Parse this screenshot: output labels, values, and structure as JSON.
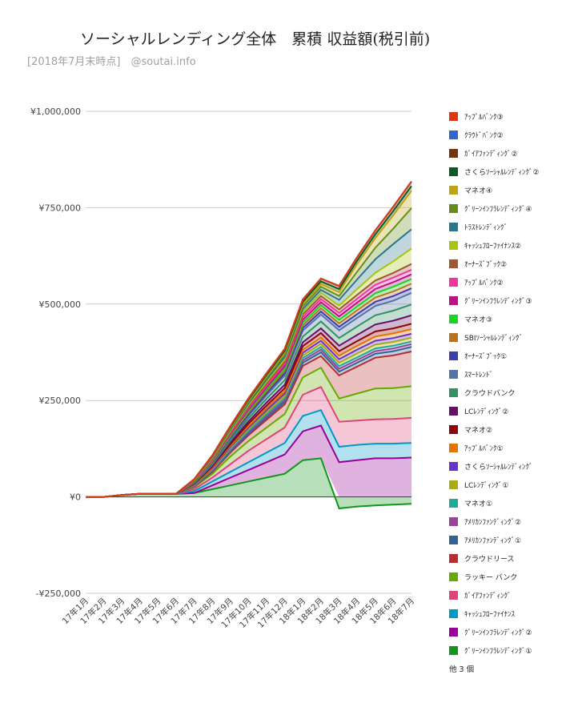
{
  "chart_data": {
    "type": "area",
    "stacked": true,
    "title": "ソーシャルレンディング全体　累積 収益額(税引前)",
    "subtitle": "[2018年7月末時点]　@soutai.info",
    "ylim": [
      -250000,
      1000000
    ],
    "yticks": [
      -250000,
      0,
      250000,
      500000,
      750000,
      1000000
    ],
    "ytick_labels": [
      "-¥250,000",
      "¥0",
      "¥250,000",
      "¥500,000",
      "¥750,000",
      "¥1,000,000"
    ],
    "grid": true,
    "legend_position": "right",
    "legend_more": "他 3 個",
    "categories": [
      "17年1月",
      "17年2月",
      "17年3月",
      "17年4月",
      "17年5月",
      "17年6月",
      "17年7月",
      "17年8月",
      "17年9月",
      "17年10月",
      "17年11月",
      "17年12月",
      "18年1月",
      "18年2月",
      "18年3月",
      "18年4月",
      "18年5月",
      "18年6月",
      "18年7月"
    ],
    "series": [
      {
        "name": "ｸﾞﾘｰﾝｲﾝﾌﾗﾚﾝﾃﾞｨﾝｸﾞ①",
        "color": "#109618",
        "values": [
          0,
          0,
          5000,
          8000,
          8000,
          8000,
          10000,
          20000,
          30000,
          40000,
          50000,
          60000,
          95000,
          100000,
          -30000,
          -25000,
          -22000,
          -20000,
          -18000
        ]
      },
      {
        "name": "ｸﾞﾘｰﾝｲﾝﾌﾗﾚﾝﾃﾞｨﾝｸﾞ②",
        "color": "#990099",
        "values": [
          0,
          0,
          0,
          0,
          0,
          0,
          0,
          10000,
          20000,
          30000,
          40000,
          50000,
          75000,
          85000,
          90000,
          95000,
          100000,
          100000,
          102000
        ]
      },
      {
        "name": "ｷｬｯｼｭﾌﾛｰﾌｧｲﾅﾝｽ",
        "color": "#0099c6",
        "values": [
          0,
          0,
          0,
          0,
          0,
          0,
          5000,
          10000,
          15000,
          20000,
          25000,
          30000,
          40000,
          40000,
          40000,
          40000,
          38000,
          38000,
          38000
        ]
      },
      {
        "name": "ｶﾞｲｱﾌｧﾝﾃﾞｨﾝｸﾞ",
        "color": "#dd4477",
        "values": [
          0,
          0,
          0,
          0,
          0,
          0,
          5000,
          10000,
          20000,
          30000,
          35000,
          40000,
          55000,
          60000,
          65000,
          63000,
          63000,
          64000,
          65000
        ]
      },
      {
        "name": "ラッキー バンク",
        "color": "#66aa00",
        "values": [
          0,
          0,
          0,
          0,
          0,
          0,
          5000,
          10000,
          20000,
          25000,
          30000,
          35000,
          45000,
          50000,
          60000,
          70000,
          80000,
          80000,
          82000
        ]
      },
      {
        "name": "クラウドリース",
        "color": "#b82e2e",
        "values": [
          0,
          0,
          0,
          0,
          0,
          0,
          2000,
          5000,
          10000,
          15000,
          20000,
          25000,
          30000,
          30000,
          60000,
          70000,
          80000,
          85000,
          90000
        ]
      },
      {
        "name": "ｱﾒﾘｶﾝﾌｧﾝﾃﾞｨﾝｸﾞ①",
        "color": "#316395",
        "values": [
          0,
          0,
          0,
          0,
          0,
          0,
          1000,
          2000,
          3000,
          4000,
          5000,
          6000,
          8000,
          10000,
          10000,
          10000,
          10000,
          11000,
          12000
        ]
      },
      {
        "name": "ｱﾒﾘｶﾝﾌｧﾝﾃﾞｨﾝｸﾞ②",
        "color": "#994499",
        "values": [
          0,
          0,
          0,
          0,
          0,
          0,
          1000,
          2000,
          3000,
          4000,
          5000,
          5000,
          6000,
          7000,
          7000,
          7000,
          7000,
          7000,
          7000
        ]
      },
      {
        "name": "マネオ①",
        "color": "#22aa99",
        "values": [
          0,
          0,
          0,
          0,
          0,
          0,
          1000,
          2000,
          3000,
          4000,
          5000,
          5000,
          6000,
          7000,
          7000,
          7000,
          7000,
          7000,
          7000
        ]
      },
      {
        "name": "LCﾚﾝﾃﾞｨﾝｸﾞ①",
        "color": "#aaaa11",
        "values": [
          0,
          0,
          0,
          0,
          0,
          0,
          1000,
          2000,
          3000,
          4000,
          5000,
          6000,
          7000,
          8000,
          9000,
          10000,
          10000,
          10000,
          10000
        ]
      },
      {
        "name": "さくらｿｰｼｬﾙﾚﾝﾃﾞｨﾝｸﾞ",
        "color": "#6633cc",
        "values": [
          0,
          0,
          0,
          0,
          0,
          0,
          1000,
          2000,
          3000,
          4000,
          5000,
          6000,
          7000,
          8000,
          9000,
          10000,
          10000,
          10000,
          10000
        ]
      },
      {
        "name": "ｱｯﾌﾟﾙﾊﾞﾝｸ①",
        "color": "#e67300",
        "values": [
          0,
          0,
          0,
          0,
          0,
          0,
          1000,
          2000,
          3000,
          4000,
          5000,
          6000,
          7000,
          8000,
          9000,
          10000,
          11000,
          12000,
          12000
        ]
      },
      {
        "name": "マネオ②",
        "color": "#8b0707",
        "values": [
          0,
          0,
          0,
          0,
          0,
          0,
          1000,
          2000,
          4000,
          6000,
          7000,
          8000,
          10000,
          12000,
          12000,
          12000,
          13000,
          13000,
          14000
        ]
      },
      {
        "name": "LCﾚﾝﾃﾞｨﾝｸﾞ②",
        "color": "#651067",
        "values": [
          0,
          0,
          0,
          0,
          0,
          0,
          1000,
          2000,
          4000,
          6000,
          8000,
          9000,
          10000,
          12000,
          14000,
          16000,
          18000,
          20000,
          22000
        ]
      },
      {
        "name": "クラウドバンク",
        "color": "#329262",
        "values": [
          0,
          0,
          0,
          0,
          0,
          0,
          1000,
          3000,
          5000,
          8000,
          10000,
          12000,
          15000,
          18000,
          20000,
          22000,
          24000,
          26000,
          28000
        ]
      },
      {
        "name": "ｽﾏｰﾄﾚﾝﾄﾞ",
        "color": "#5574a6",
        "values": [
          0,
          0,
          0,
          0,
          0,
          0,
          1000,
          3000,
          5000,
          7000,
          9000,
          12000,
          15000,
          18000,
          20000,
          22000,
          24000,
          26000,
          30000
        ]
      },
      {
        "name": "ｵｰﾅｰｽﾞﾌﾞｯｸ①",
        "color": "#3b3eac",
        "values": [
          0,
          0,
          0,
          0,
          0,
          0,
          1000,
          2000,
          3000,
          4000,
          5000,
          6000,
          7000,
          8000,
          9000,
          10000,
          11000,
          12000,
          12000
        ]
      },
      {
        "name": "SBIｿｰｼｬﾙﾚﾝﾃﾞｨﾝｸﾞ",
        "color": "#b77322",
        "values": [
          0,
          0,
          0,
          0,
          0,
          0,
          1000,
          2000,
          3000,
          4000,
          5000,
          6000,
          7000,
          8000,
          9000,
          10000,
          11000,
          12000,
          12000
        ]
      },
      {
        "name": "マネオ③",
        "color": "#16d620",
        "values": [
          0,
          0,
          0,
          0,
          0,
          0,
          1000,
          2000,
          3000,
          4000,
          5000,
          6000,
          7000,
          8000,
          9000,
          10000,
          11000,
          12000,
          12000
        ]
      },
      {
        "name": "ｸﾞﾘｰﾝｲﾝﾌﾗﾚﾝﾃﾞｨﾝｸﾞ③",
        "color": "#b91383",
        "values": [
          0,
          0,
          0,
          0,
          0,
          0,
          1000,
          2000,
          3000,
          4000,
          5000,
          6000,
          7000,
          8000,
          9000,
          10000,
          11000,
          12000,
          12000
        ]
      },
      {
        "name": "ｱｯﾌﾟﾙﾊﾞﾝｸ②",
        "color": "#f4359e",
        "values": [
          0,
          0,
          0,
          0,
          0,
          0,
          1000,
          2000,
          3000,
          4000,
          5000,
          6000,
          7000,
          8000,
          9000,
          10000,
          11000,
          12000,
          12000
        ]
      },
      {
        "name": "ｵｰﾅｰｽﾞﾌﾞｯｸ②",
        "color": "#9c5935",
        "values": [
          0,
          0,
          0,
          0,
          0,
          0,
          1000,
          2000,
          3000,
          4000,
          5000,
          6000,
          7000,
          8000,
          9000,
          10000,
          11000,
          12000,
          15000
        ]
      },
      {
        "name": "ｷｬｯｼｭﾌﾛｰﾌｧｲﾅﾝｽ②",
        "color": "#a9c413",
        "values": [
          0,
          0,
          0,
          0,
          0,
          0,
          1000,
          2000,
          3000,
          4000,
          5000,
          6000,
          7000,
          8000,
          10000,
          15000,
          20000,
          30000,
          40000
        ]
      },
      {
        "name": "ﾄﾗｽﾄﾚﾝﾃﾞｨﾝｸﾞ",
        "color": "#2a778d",
        "values": [
          0,
          0,
          0,
          0,
          0,
          0,
          1000,
          2000,
          3000,
          4000,
          5000,
          6000,
          7000,
          8000,
          15000,
          25000,
          35000,
          45000,
          50000
        ]
      },
      {
        "name": "ｸﾞﾘｰﾝｲﾝﾌﾗﾚﾝﾃﾞｨﾝｸﾞ④",
        "color": "#668d1c",
        "values": [
          0,
          0,
          0,
          0,
          0,
          0,
          1000,
          2000,
          3000,
          4000,
          5000,
          6000,
          7000,
          8000,
          10000,
          20000,
          30000,
          40000,
          55000
        ]
      },
      {
        "name": "マネオ④",
        "color": "#bea413",
        "values": [
          0,
          0,
          0,
          0,
          0,
          0,
          0,
          1000,
          2000,
          3000,
          4000,
          5000,
          6000,
          7000,
          10000,
          20000,
          25000,
          35000,
          45000
        ]
      },
      {
        "name": "さくらｿｰｼｬﾙﾚﾝﾃﾞｨﾝｸﾞ②",
        "color": "#0c5922",
        "values": [
          0,
          0,
          0,
          0,
          0,
          0,
          0,
          1000,
          2000,
          3000,
          4000,
          5000,
          6000,
          7000,
          8000,
          9000,
          10000,
          11000,
          12000
        ]
      },
      {
        "name": "ｶﾞｲｱﾌｧﾝﾃﾞｨﾝｸﾞ②",
        "color": "#743411",
        "values": [
          0,
          0,
          0,
          0,
          0,
          0,
          0,
          1000,
          2000,
          3000,
          4000,
          5000,
          6000,
          7000,
          8000,
          9000,
          10000,
          11000,
          12000
        ]
      },
      {
        "name": "ｸﾗｳﾄﾞﾊﾞﾝｸ②",
        "color": "#3366cc",
        "values": [
          0,
          0,
          0,
          0,
          0,
          0,
          0,
          0,
          0,
          0,
          0,
          0,
          0,
          0,
          0,
          0,
          0,
          0,
          0
        ]
      },
      {
        "name": "ｱｯﾌﾟﾙﾊﾞﾝｸ③",
        "color": "#dc3912",
        "values": [
          0,
          0,
          0,
          0,
          0,
          0,
          0,
          0,
          0,
          0,
          0,
          0,
          0,
          0,
          0,
          0,
          0,
          0,
          0
        ]
      }
    ]
  }
}
